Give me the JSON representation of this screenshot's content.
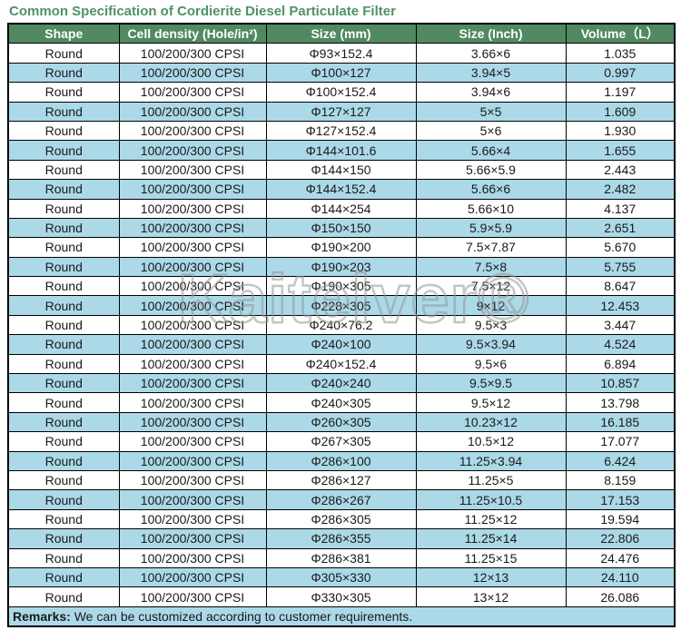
{
  "title": "Common Specification of Cordierite Diesel Particulate Filter",
  "watermark": "Kaitelver®",
  "colors": {
    "title_green": "#4f9168",
    "header_bg": "#518961",
    "header_text": "#ffffff",
    "alt_row_bg": "#abd9e8",
    "border": "#000000"
  },
  "table": {
    "headers": [
      "Shape",
      "Cell density (Hole/in²)",
      "Size (mm)",
      "Size (Inch)",
      "Volume（L）"
    ],
    "rows": [
      [
        "Round",
        "100/200/300 CPSI",
        "Φ93×152.4",
        "3.66×6",
        "1.035"
      ],
      [
        "Round",
        "100/200/300 CPSI",
        "Φ100×127",
        "3.94×5",
        "0.997"
      ],
      [
        "Round",
        "100/200/300 CPSI",
        "Φ100×152.4",
        "3.94×6",
        "1.197"
      ],
      [
        "Round",
        "100/200/300 CPSI",
        "Φ127×127",
        "5×5",
        "1.609"
      ],
      [
        "Round",
        "100/200/300 CPSI",
        "Φ127×152.4",
        "5×6",
        "1.930"
      ],
      [
        "Round",
        "100/200/300 CPSI",
        "Φ144×101.6",
        "5.66×4",
        "1.655"
      ],
      [
        "Round",
        "100/200/300 CPSI",
        "Φ144×150",
        "5.66×5.9",
        "2.443"
      ],
      [
        "Round",
        "100/200/300 CPSI",
        "Φ144×152.4",
        "5.66×6",
        "2.482"
      ],
      [
        "Round",
        "100/200/300 CPSI",
        "Φ144×254",
        "5.66×10",
        "4.137"
      ],
      [
        "Round",
        "100/200/300 CPSI",
        "Φ150×150",
        "5.9×5.9",
        "2.651"
      ],
      [
        "Round",
        "100/200/300 CPSI",
        "Φ190×200",
        "7.5×7.87",
        "5.670"
      ],
      [
        "Round",
        "100/200/300 CPSI",
        "Φ190×203",
        "7.5×8",
        "5.755"
      ],
      [
        "Round",
        "100/200/300 CPSI",
        "Φ190×305",
        "7.5×12",
        "8.647"
      ],
      [
        "Round",
        "100/200/300 CPSI",
        "Φ228×305",
        "9×12",
        "12.453"
      ],
      [
        "Round",
        "100/200/300 CPSI",
        "Φ240×76.2",
        "9.5×3",
        "3.447"
      ],
      [
        "Round",
        "100/200/300 CPSI",
        "Φ240×100",
        "9.5×3.94",
        "4.524"
      ],
      [
        "Round",
        "100/200/300 CPSI",
        "Φ240×152.4",
        "9.5×6",
        "6.894"
      ],
      [
        "Round",
        "100/200/300 CPSI",
        "Φ240×240",
        "9.5×9.5",
        "10.857"
      ],
      [
        "Round",
        "100/200/300 CPSI",
        "Φ240×305",
        "9.5×12",
        "13.798"
      ],
      [
        "Round",
        "100/200/300 CPSI",
        "Φ260×305",
        "10.23×12",
        "16.185"
      ],
      [
        "Round",
        "100/200/300 CPSI",
        "Φ267×305",
        "10.5×12",
        "17.077"
      ],
      [
        "Round",
        "100/200/300 CPSI",
        "Φ286×100",
        "11.25×3.94",
        "6.424"
      ],
      [
        "Round",
        "100/200/300 CPSI",
        "Φ286×127",
        "11.25×5",
        "8.159"
      ],
      [
        "Round",
        "100/200/300 CPSI",
        "Φ286×267",
        "11.25×10.5",
        "17.153"
      ],
      [
        "Round",
        "100/200/300 CPSI",
        "Φ286×305",
        "11.25×12",
        "19.594"
      ],
      [
        "Round",
        "100/200/300 CPSI",
        "Φ286×355",
        "11.25×14",
        "22.806"
      ],
      [
        "Round",
        "100/200/300 CPSI",
        "Φ286×381",
        "11.25×15",
        "24.476"
      ],
      [
        "Round",
        "100/200/300 CPSI",
        "Φ305×330",
        "12×13",
        "24.110"
      ],
      [
        "Round",
        "100/200/300 CPSI",
        "Φ330×305",
        "13×12",
        "26.086"
      ]
    ]
  },
  "remarks": {
    "label": "Remarks:",
    "text": " We can be customized according to customer requirements."
  }
}
